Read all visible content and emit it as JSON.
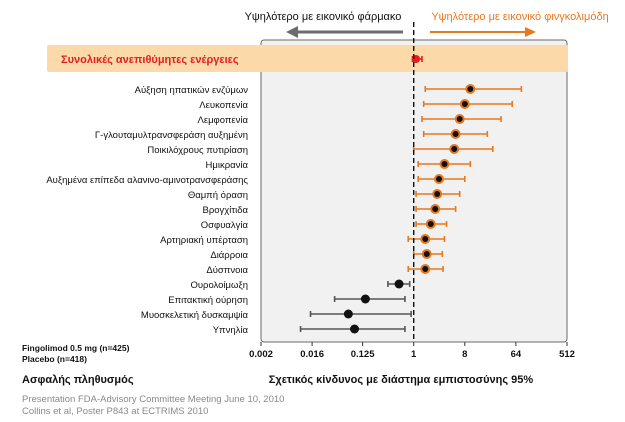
{
  "header": {
    "left_label": "Υψηλότερο με εικονικό φάρμακο",
    "right_label": "Υψηλότερο με εικονικό φινγκολιμόδη"
  },
  "footer": {
    "legend_line1": "Fingolimod 0.5 mg (n=425)",
    "legend_line2": "Placebo (n=418)",
    "population": "Ασφαλής πληθυσμός",
    "xlabel": "Σχετικός κίνδυνος με διάστημα εμπιστοσύνης 95%",
    "source_line1": "Presentation FDA-Advisory Committee Meeting June 10, 2010",
    "source_line2": "Collins et al, Poster P843 at ECTRIMS 2010"
  },
  "colors": {
    "highlight_band": "#fcd9a8",
    "orange": "#e8781e",
    "red": "#e41e1e",
    "panel_fill": "#f1f1f1",
    "arrow_left": "#6d6d6d"
  },
  "chart_data": {
    "type": "forest",
    "xlabel": "Σχετικός κίνδυνος με διάστημα εμπιστοσύνης 95%",
    "xscale": "log2",
    "xticks": [
      "0.002",
      "0.016",
      "0.125",
      "1",
      "8",
      "64",
      "512"
    ],
    "xlim": [
      0.002,
      512
    ],
    "reference_line": 1,
    "rows": [
      {
        "label": "Συνολικές ανεπιθύμητες ενέργειες",
        "rr": 1.1,
        "lo": 0.95,
        "hi": 1.4,
        "color": "red",
        "highlight": true
      },
      {
        "label": "Αύξηση ηπατικών ενζύμων",
        "rr": 10.0,
        "lo": 1.6,
        "hi": 80,
        "color": "orange"
      },
      {
        "label": "Λευκοπενία",
        "rr": 8.0,
        "lo": 1.5,
        "hi": 55,
        "color": "orange"
      },
      {
        "label": "Λεμφοπενία",
        "rr": 6.5,
        "lo": 1.4,
        "hi": 35,
        "color": "orange"
      },
      {
        "label": "Γ-γλουταμυλτρανσφεράση αυξημένη",
        "rr": 5.5,
        "lo": 1.5,
        "hi": 20,
        "color": "orange"
      },
      {
        "label": "Ποικιλόχρους πυτιρίαση",
        "rr": 5.2,
        "lo": 1.0,
        "hi": 25,
        "color": "orange"
      },
      {
        "label": "Ημικρανία",
        "rr": 3.5,
        "lo": 1.2,
        "hi": 10,
        "color": "orange"
      },
      {
        "label": "Αυξημένα επίπεδα αλανινο-αμινοτρανσφεράσης",
        "rr": 2.8,
        "lo": 1.2,
        "hi": 8,
        "color": "orange"
      },
      {
        "label": "Θαμπή όραση",
        "rr": 2.6,
        "lo": 1.1,
        "hi": 6.5,
        "color": "orange"
      },
      {
        "label": "Βρογχίτιδα",
        "rr": 2.4,
        "lo": 1.1,
        "hi": 5.5,
        "color": "orange"
      },
      {
        "label": "Οσφυαλγία",
        "rr": 2.0,
        "lo": 1.1,
        "hi": 3.8,
        "color": "orange"
      },
      {
        "label": "Αρτηριακή υπέρταση",
        "rr": 1.6,
        "lo": 0.8,
        "hi": 3.5,
        "color": "orange"
      },
      {
        "label": "Διάρροια",
        "rr": 1.7,
        "lo": 1.0,
        "hi": 3.2,
        "color": "orange"
      },
      {
        "label": "Δύσπνοια",
        "rr": 1.6,
        "lo": 0.8,
        "hi": 3.3,
        "color": "orange"
      },
      {
        "label": "Ουρολοίμωξη",
        "rr": 0.55,
        "lo": 0.35,
        "hi": 0.85,
        "color": "black"
      },
      {
        "label": "Επιτακτική ούρηση",
        "rr": 0.14,
        "lo": 0.04,
        "hi": 0.7,
        "color": "black"
      },
      {
        "label": "Μυοσκελετική δυσκαμψία",
        "rr": 0.07,
        "lo": 0.015,
        "hi": 0.9,
        "color": "black"
      },
      {
        "label": "Υπνηλία",
        "rr": 0.09,
        "lo": 0.01,
        "hi": 0.7,
        "color": "black"
      }
    ]
  }
}
